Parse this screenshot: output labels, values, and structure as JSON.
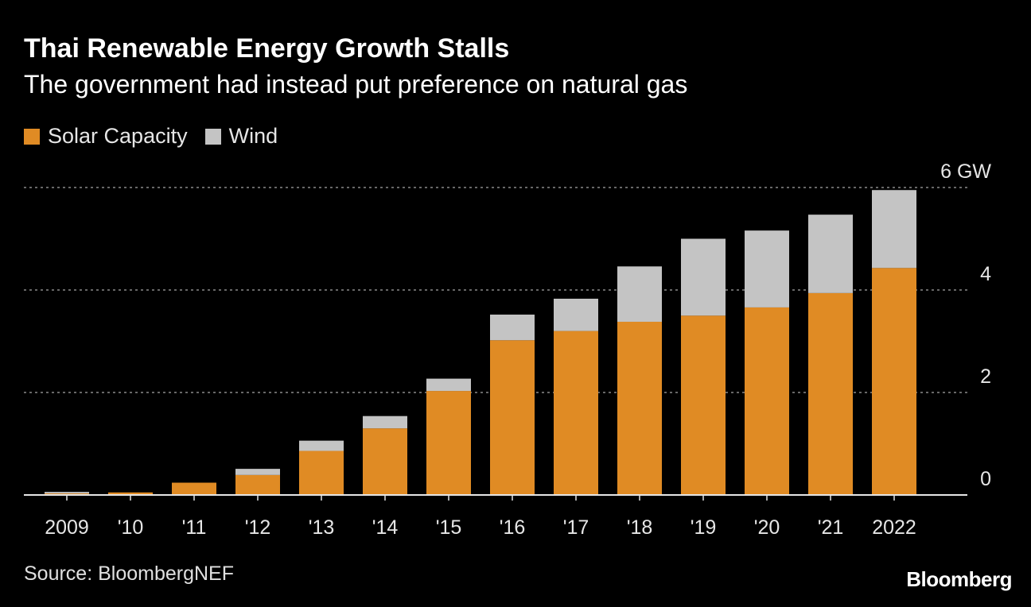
{
  "header": {
    "title": "Thai Renewable Energy Growth Stalls",
    "subtitle": "The government had instead put preference on natural gas"
  },
  "legend": {
    "items": [
      {
        "label": "Solar Capacity",
        "color": "#e08b24"
      },
      {
        "label": "Wind",
        "color": "#c4c4c4"
      }
    ]
  },
  "footer": {
    "source": "Source: BloombergNEF",
    "logo": "Bloomberg"
  },
  "chart_data": {
    "type": "bar",
    "stacked": true,
    "categories": [
      "2009",
      "'10",
      "'11",
      "'12",
      "'13",
      "'14",
      "'15",
      "'16",
      "'17",
      "'18",
      "'19",
      "'20",
      "'21",
      "2022"
    ],
    "series": [
      {
        "name": "Solar Capacity",
        "color": "#e08b24",
        "values": [
          0.03,
          0.05,
          0.24,
          0.39,
          0.86,
          1.3,
          2.03,
          3.02,
          3.2,
          3.38,
          3.5,
          3.66,
          3.94,
          4.43
        ]
      },
      {
        "name": "Wind",
        "color": "#c4c4c4",
        "values": [
          0.03,
          0.0,
          0.0,
          0.12,
          0.2,
          0.24,
          0.24,
          0.5,
          0.63,
          1.08,
          1.5,
          1.5,
          1.53,
          1.52
        ]
      }
    ],
    "y_ticks": [
      {
        "value": 0,
        "label": "0"
      },
      {
        "value": 2,
        "label": "2"
      },
      {
        "value": 4,
        "label": "4"
      },
      {
        "value": 6,
        "label": "6 GW"
      }
    ],
    "ylim": [
      0,
      6
    ],
    "xlabel": "",
    "ylabel": "",
    "grid": "horizontal dotted",
    "legend_position": "top-left"
  }
}
